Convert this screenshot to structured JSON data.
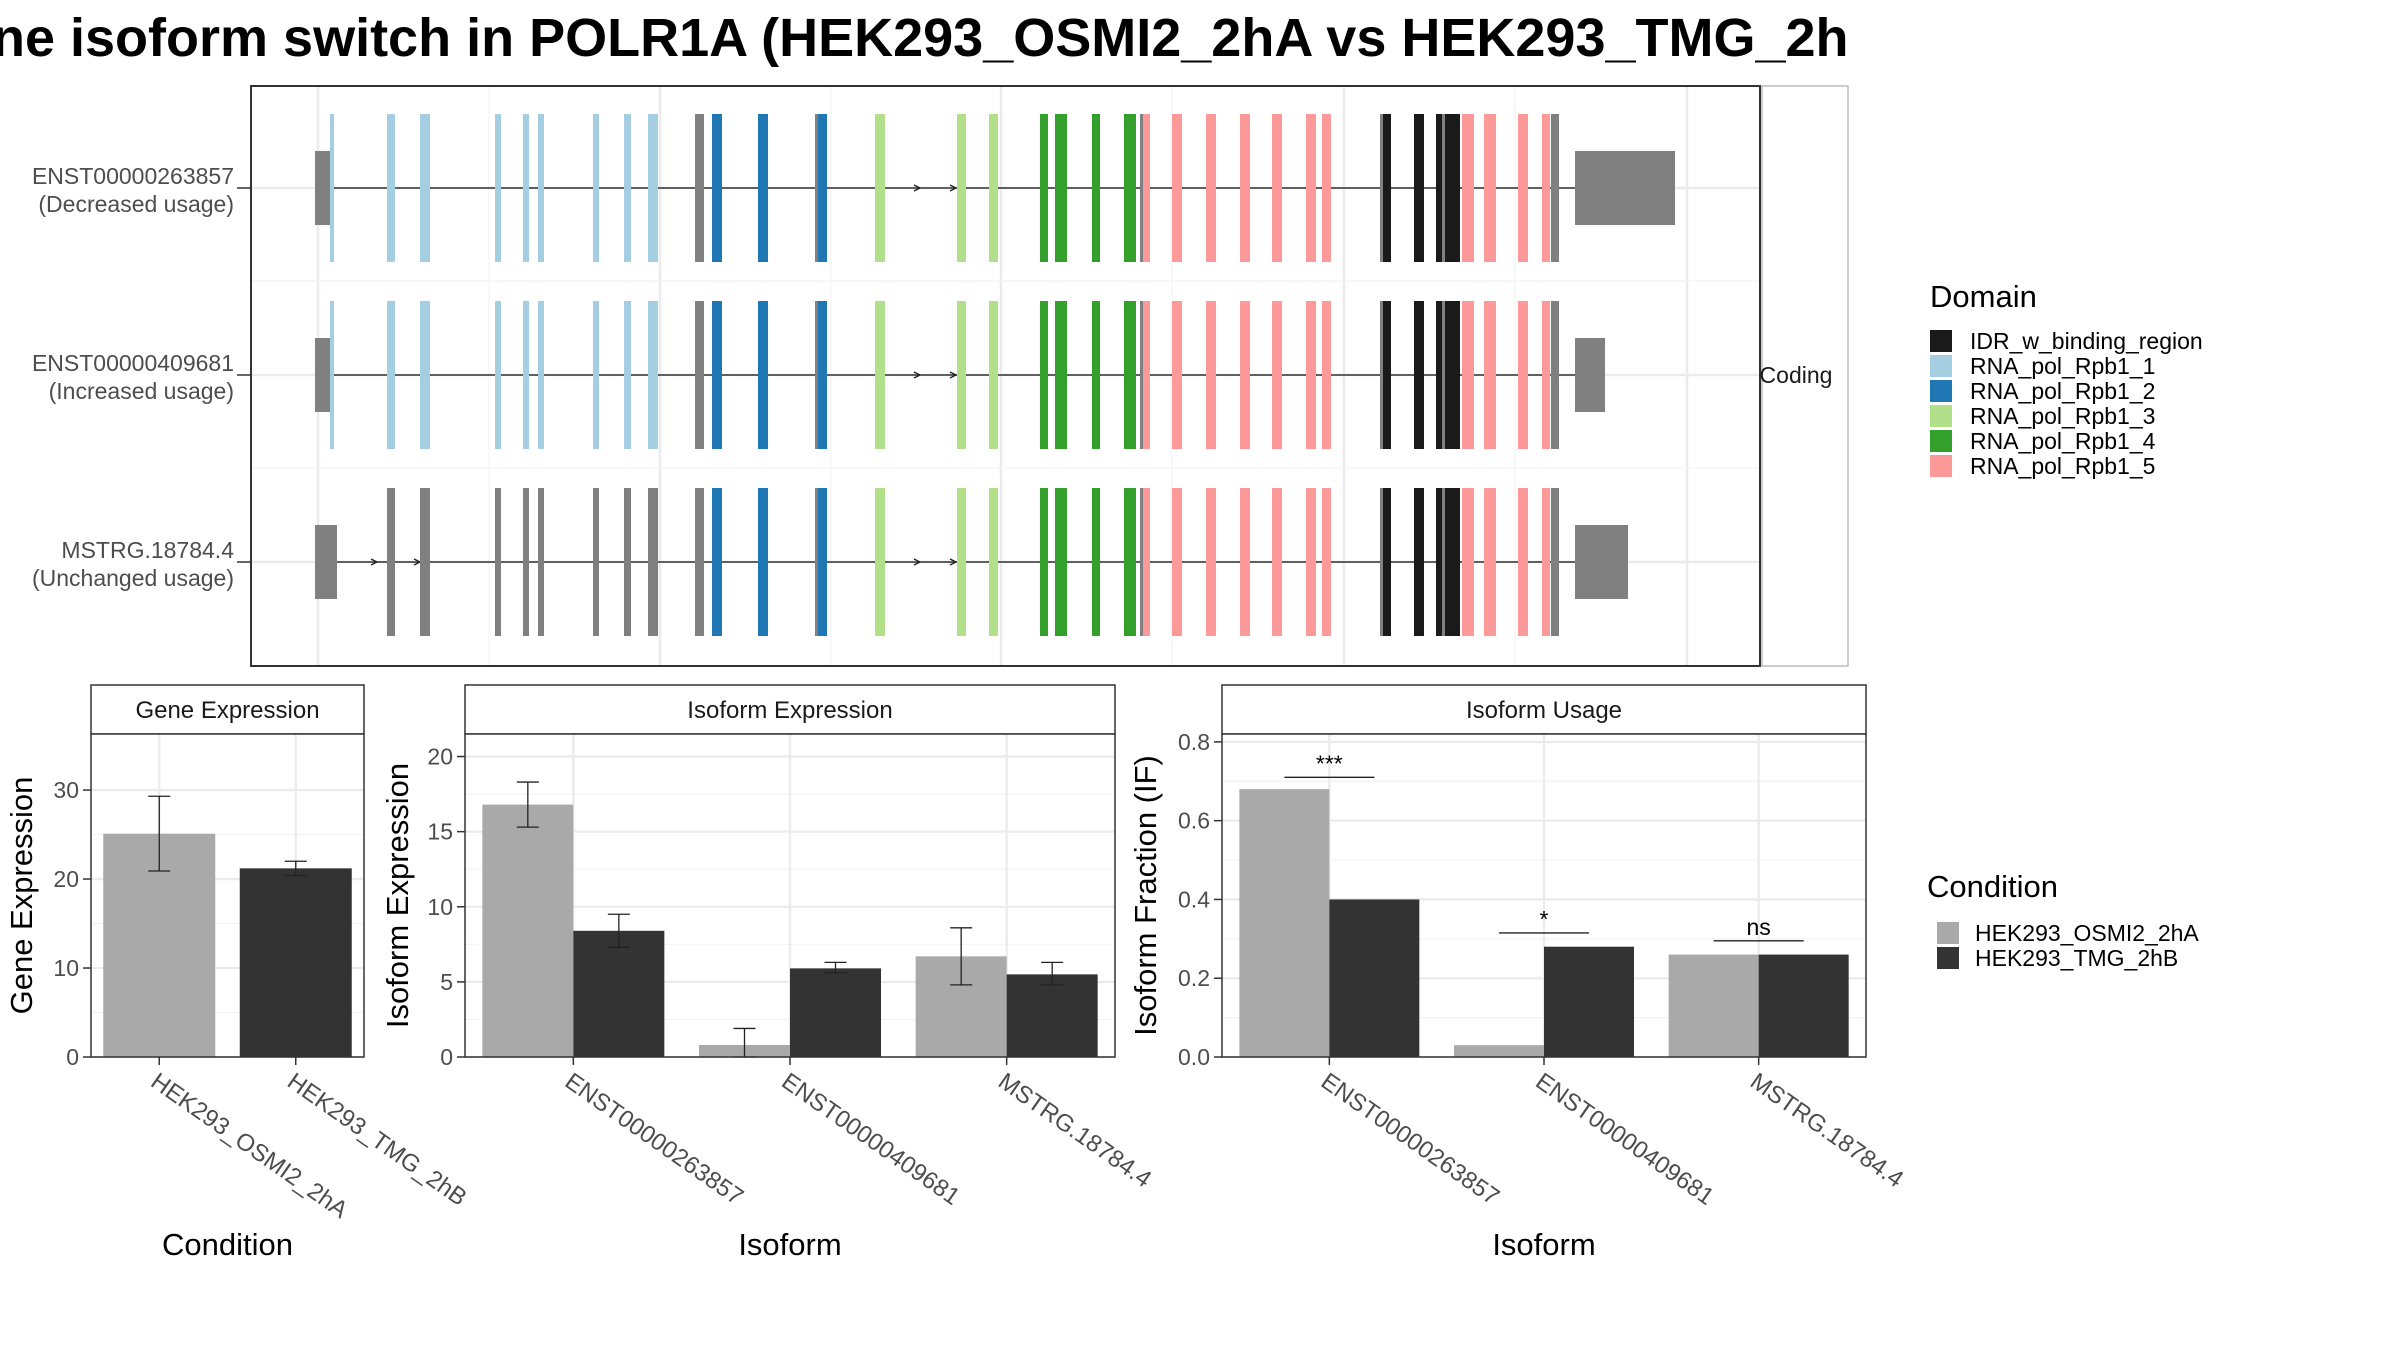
{
  "title": "ne isoform switch in POLR1A (HEK293_OSMI2_2hA vs HEK293_TMG_2h",
  "colors": {
    "intron": "#333333",
    "other_exon": "#808080",
    "facet_strip": "#ffffff",
    "grid": "#ebebeb",
    "cond_a": "#a9a9a9",
    "cond_b": "#333333"
  },
  "chart_data": [
    {
      "type": "gene_structure",
      "facet_label": "Coding",
      "isoforms": [
        {
          "id": "ENST00000263857",
          "usage": "(Decreased usage)",
          "first_exon_wide": false,
          "last_exon_size": "large"
        },
        {
          "id": "ENST00000409681",
          "usage": "(Increased usage)",
          "first_exon_wide": false,
          "last_exon_size": "small"
        },
        {
          "id": "MSTRG.18784.4",
          "usage": "(Unchanged usage)",
          "first_exon_wide": true,
          "last_exon_size": "medium",
          "exon1_9_unannotated": true
        }
      ],
      "legend": {
        "title": "Domain",
        "items": [
          {
            "label": "IDR_w_binding_region",
            "color": "#1a1a1a"
          },
          {
            "label": "RNA_pol_Rpb1_1",
            "color": "#a6cee3"
          },
          {
            "label": "RNA_pol_Rpb1_2",
            "color": "#1f78b4"
          },
          {
            "label": "RNA_pol_Rpb1_3",
            "color": "#b2df8a"
          },
          {
            "label": "RNA_pol_Rpb1_4",
            "color": "#33a02c"
          },
          {
            "label": "RNA_pol_Rpb1_5",
            "color": "#fb9a99"
          }
        ]
      }
    },
    {
      "type": "bar",
      "facet_label": "Gene Expression",
      "xlabel": "Condition",
      "ylabel": "Gene Expression",
      "categories": [
        "HEK293_OSMI2_2hA",
        "HEK293_TMG_2hB"
      ],
      "values": [
        25.1,
        21.2
      ],
      "error_low": [
        20.9,
        20.4
      ],
      "error_high": [
        29.3,
        22.0
      ],
      "ylim": [
        0,
        36.3
      ],
      "yticks": [
        0,
        10,
        20,
        30
      ]
    },
    {
      "type": "bar",
      "facet_label": "Isoform Expression",
      "xlabel": "Isoform",
      "ylabel": "Isoform Expression",
      "categories": [
        "ENST00000263857",
        "ENST00000409681",
        "MSTRG.18784.4"
      ],
      "series": [
        {
          "name": "HEK293_OSMI2_2hA",
          "values": [
            16.8,
            0.8,
            6.7
          ],
          "error_low": [
            15.3,
            0.0,
            4.8
          ],
          "error_high": [
            18.3,
            1.9,
            8.6
          ]
        },
        {
          "name": "HEK293_TMG_2hB",
          "values": [
            8.4,
            5.9,
            5.5
          ],
          "error_low": [
            7.3,
            5.6,
            4.8
          ],
          "error_high": [
            9.5,
            6.3,
            6.3
          ]
        }
      ],
      "ylim": [
        0,
        21.5
      ],
      "yticks": [
        0,
        5,
        10,
        15,
        20
      ]
    },
    {
      "type": "bar",
      "facet_label": "Isoform Usage",
      "xlabel": "Isoform",
      "ylabel": "Isoform Fraction (IF)",
      "categories": [
        "ENST00000263857",
        "ENST00000409681",
        "MSTRG.18784.4"
      ],
      "series": [
        {
          "name": "HEK293_OSMI2_2hA",
          "values": [
            0.68,
            0.03,
            0.26
          ]
        },
        {
          "name": "HEK293_TMG_2hB",
          "values": [
            0.4,
            0.28,
            0.26
          ]
        }
      ],
      "significance": [
        {
          "label": "***",
          "y": 0.71
        },
        {
          "label": "*",
          "y": 0.315
        },
        {
          "label": "ns",
          "y": 0.295
        }
      ],
      "ylim": [
        0,
        0.82
      ],
      "yticks": [
        "0.0",
        "0.2",
        "0.4",
        "0.6",
        "0.8"
      ]
    }
  ],
  "condition_legend": {
    "title": "Condition",
    "items": [
      {
        "label": "HEK293_OSMI2_2hA",
        "color": "#a9a9a9"
      },
      {
        "label": "HEK293_TMG_2hB",
        "color": "#333333"
      }
    ]
  }
}
